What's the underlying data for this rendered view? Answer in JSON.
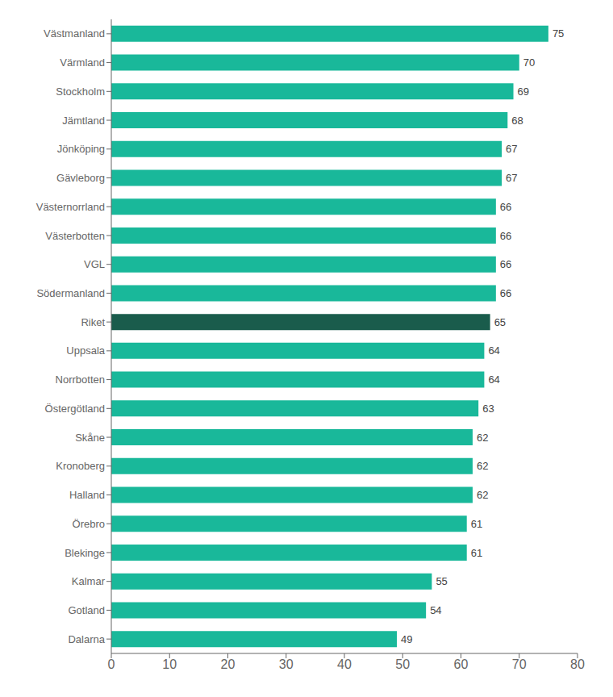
{
  "chart_data": {
    "type": "bar",
    "orientation": "horizontal",
    "categories": [
      "Dalarna",
      "Gotland",
      "Kalmar",
      "Blekinge",
      "Örebro",
      "Halland",
      "Kronoberg",
      "Skåne",
      "Östergötland",
      "Norrbotten",
      "Uppsala",
      "Riket",
      "Södermanland",
      "VGL",
      "Västerbotten",
      "Västernorrland",
      "Gävleborg",
      "Jönköping",
      "Jämtland",
      "Stockholm",
      "Värmland",
      "Västmanland"
    ],
    "values": [
      49,
      54,
      55,
      61,
      61,
      62,
      62,
      62,
      63,
      64,
      64,
      65,
      66,
      66,
      66,
      66,
      67,
      67,
      68,
      69,
      70,
      75
    ],
    "colors": [
      "#19b89a",
      "#19b89a",
      "#19b89a",
      "#19b89a",
      "#19b89a",
      "#19b89a",
      "#19b89a",
      "#19b89a",
      "#19b89a",
      "#19b89a",
      "#19b89a",
      "#1a5c4c",
      "#19b89a",
      "#19b89a",
      "#19b89a",
      "#19b89a",
      "#19b89a",
      "#19b89a",
      "#19b89a",
      "#19b89a",
      "#19b89a",
      "#19b89a"
    ],
    "xlim": [
      0,
      80
    ],
    "xticks": [
      0,
      10,
      20,
      30,
      40,
      50,
      60,
      70,
      80
    ],
    "grid": false,
    "data_labels": true
  }
}
